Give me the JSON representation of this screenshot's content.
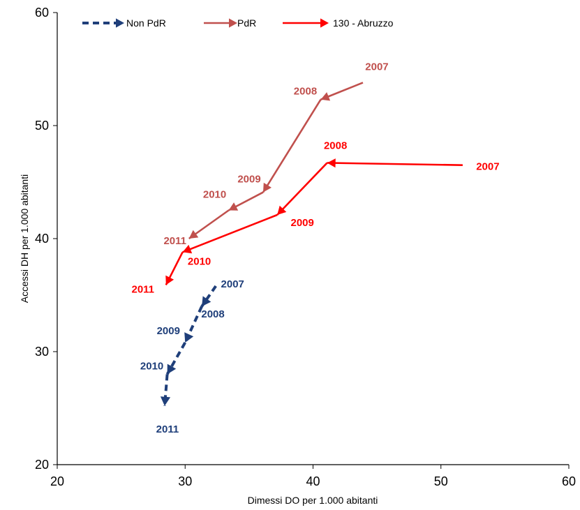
{
  "chart_data": {
    "type": "line",
    "title": "",
    "xlabel": "Dimessi DO per 1.000 abitanti",
    "ylabel": "Accessi DH per 1.000 abitanti",
    "xlim": [
      20,
      60
    ],
    "ylim": [
      20,
      60
    ],
    "xticks": [
      20,
      30,
      40,
      50,
      60
    ],
    "yticks": [
      20,
      30,
      40,
      50,
      60
    ],
    "grid": false,
    "legend_position": "top",
    "series": [
      {
        "name": "Non PdR",
        "color": "#1f3f7a",
        "dash": true,
        "points": [
          {
            "x": 32.4,
            "y": 35.8,
            "label": "2007"
          },
          {
            "x": 31.3,
            "y": 34.0,
            "label": "2008"
          },
          {
            "x": 30.0,
            "y": 30.8,
            "label": "2009"
          },
          {
            "x": 28.6,
            "y": 28.0,
            "label": "2010"
          },
          {
            "x": 28.4,
            "y": 25.2,
            "label": "2011"
          }
        ]
      },
      {
        "name": "PdR",
        "color": "#c0504d",
        "dash": false,
        "points": [
          {
            "x": 43.9,
            "y": 53.8,
            "label": "2007"
          },
          {
            "x": 40.6,
            "y": 52.3,
            "label": "2008"
          },
          {
            "x": 36.1,
            "y": 44.1,
            "label": "2009"
          },
          {
            "x": 33.4,
            "y": 42.5,
            "label": "2010"
          },
          {
            "x": 30.3,
            "y": 40.0,
            "label": "2011"
          }
        ]
      },
      {
        "name": "130 - Abruzzo",
        "color": "#ff0000",
        "dash": false,
        "points": [
          {
            "x": 51.7,
            "y": 46.5,
            "label": "2007"
          },
          {
            "x": 41.1,
            "y": 46.7,
            "label": "2008"
          },
          {
            "x": 37.2,
            "y": 42.1,
            "label": "2009"
          },
          {
            "x": 29.8,
            "y": 38.8,
            "label": "2010"
          },
          {
            "x": 28.5,
            "y": 35.9,
            "label": "2011"
          }
        ]
      }
    ]
  }
}
